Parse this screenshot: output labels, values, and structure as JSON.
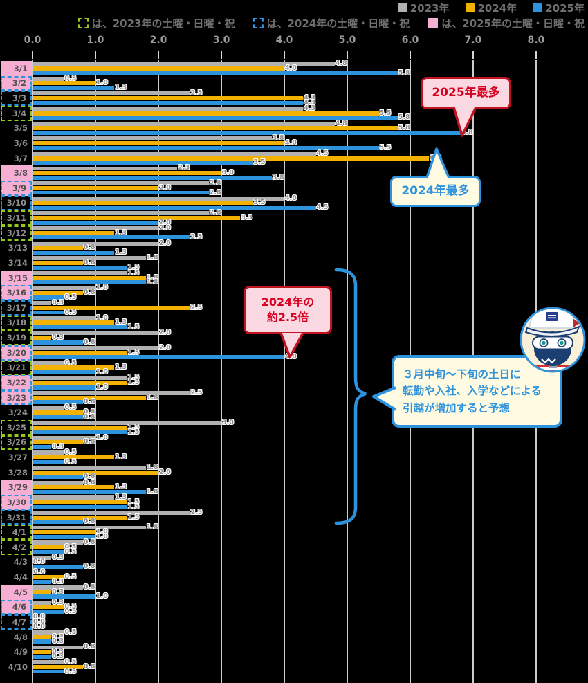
{
  "chart_data": {
    "type": "bar",
    "orientation": "horizontal",
    "x_axis": {
      "min": 0,
      "max": 8,
      "ticks": [
        "0.0",
        "1.0",
        "2.0",
        "3.0",
        "4.0",
        "5.0",
        "6.0",
        "7.0",
        "8.0"
      ],
      "grid": true
    },
    "series": [
      {
        "name": "2023年",
        "color": "#b1b1b1"
      },
      {
        "name": "2024年",
        "color": "#f3b200"
      },
      {
        "name": "2025年",
        "color": "#2e93dd"
      }
    ],
    "rows": [
      {
        "date": "3/1",
        "values": [
          4.8,
          4.0,
          5.8
        ],
        "pink": true,
        "border": null
      },
      {
        "date": "3/2",
        "values": [
          0.5,
          1.0,
          1.3
        ],
        "pink": true,
        "border": "blue"
      },
      {
        "date": "3/3",
        "values": [
          2.5,
          4.3,
          4.3
        ],
        "pink": false,
        "border": "blue"
      },
      {
        "date": "3/4",
        "values": [
          4.3,
          5.5,
          5.8
        ],
        "pink": false,
        "border": "green"
      },
      {
        "date": "3/5",
        "values": [
          4.8,
          5.8,
          6.8
        ],
        "pink": false,
        "border": null
      },
      {
        "date": "3/6",
        "values": [
          3.8,
          4.0,
          5.5
        ],
        "pink": false,
        "border": null
      },
      {
        "date": "3/7",
        "values": [
          4.5,
          6.3,
          3.5
        ],
        "pink": false,
        "border": null
      },
      {
        "date": "3/8",
        "values": [
          2.3,
          3.0,
          3.8
        ],
        "pink": true,
        "border": null
      },
      {
        "date": "3/9",
        "values": [
          2.8,
          2.0,
          2.8
        ],
        "pink": true,
        "border": "blue"
      },
      {
        "date": "3/10",
        "values": [
          4.0,
          3.5,
          4.5
        ],
        "pink": false,
        "border": "blue"
      },
      {
        "date": "3/11",
        "values": [
          2.8,
          3.3,
          2.0
        ],
        "pink": false,
        "border": "green"
      },
      {
        "date": "3/12",
        "values": [
          2.0,
          1.3,
          2.5
        ],
        "pink": false,
        "border": "green"
      },
      {
        "date": "3/13",
        "values": [
          2.0,
          0.8,
          1.3
        ],
        "pink": false,
        "border": null
      },
      {
        "date": "3/14",
        "values": [
          1.8,
          0.8,
          1.5
        ],
        "pink": false,
        "border": null
      },
      {
        "date": "3/15",
        "values": [
          1.5,
          1.8,
          1.8
        ],
        "pink": true,
        "border": null
      },
      {
        "date": "3/16",
        "values": [
          1.0,
          0.8,
          0.5
        ],
        "pink": true,
        "border": "blue"
      },
      {
        "date": "3/17",
        "values": [
          0.3,
          2.5,
          0.5
        ],
        "pink": false,
        "border": "blue"
      },
      {
        "date": "3/18",
        "values": [
          1.0,
          1.3,
          1.5
        ],
        "pink": false,
        "border": "green"
      },
      {
        "date": "3/19",
        "values": [
          2.0,
          0.3,
          0.8
        ],
        "pink": false,
        "border": "green"
      },
      {
        "date": "3/20",
        "values": [
          2.0,
          1.5,
          4.0
        ],
        "pink": true,
        "border": "blue"
      },
      {
        "date": "3/21",
        "values": [
          0.5,
          1.3,
          1.0
        ],
        "pink": false,
        "border": "green"
      },
      {
        "date": "3/22",
        "values": [
          1.5,
          1.5,
          1.0
        ],
        "pink": true,
        "border": "blue"
      },
      {
        "date": "3/23",
        "values": [
          2.5,
          1.8,
          0.8
        ],
        "pink": true,
        "border": "blue"
      },
      {
        "date": "3/24",
        "values": [
          0.5,
          0.8,
          0.8
        ],
        "pink": false,
        "border": null
      },
      {
        "date": "3/25",
        "values": [
          3.0,
          1.5,
          1.5
        ],
        "pink": false,
        "border": "green"
      },
      {
        "date": "3/26",
        "values": [
          1.0,
          0.8,
          0.3
        ],
        "pink": false,
        "border": "green"
      },
      {
        "date": "3/27",
        "values": [
          0.5,
          1.3,
          0.5
        ],
        "pink": false,
        "border": null
      },
      {
        "date": "3/28",
        "values": [
          1.8,
          2.0,
          0.8
        ],
        "pink": false,
        "border": null
      },
      {
        "date": "3/29",
        "values": [
          0.8,
          1.3,
          1.8
        ],
        "pink": true,
        "border": null
      },
      {
        "date": "3/30",
        "values": [
          1.3,
          1.5,
          1.5
        ],
        "pink": true,
        "border": "blue"
      },
      {
        "date": "3/31",
        "values": [
          2.5,
          1.5,
          0.8
        ],
        "pink": false,
        "border": "blue"
      },
      {
        "date": "4/1",
        "values": [
          1.8,
          1.0,
          1.0
        ],
        "pink": false,
        "border": "green"
      },
      {
        "date": "4/2",
        "values": [
          0.8,
          0.5,
          0.5
        ],
        "pink": false,
        "border": "green"
      },
      {
        "date": "4/3",
        "values": [
          0.3,
          0.0,
          0.8
        ],
        "pink": false,
        "border": null
      },
      {
        "date": "4/4",
        "values": [
          0.0,
          0.5,
          0.3
        ],
        "pink": false,
        "border": null
      },
      {
        "date": "4/5",
        "values": [
          0.8,
          0.3,
          1.0
        ],
        "pink": true,
        "border": null
      },
      {
        "date": "4/6",
        "values": [
          0.3,
          0.5,
          0.5
        ],
        "pink": true,
        "border": "blue"
      },
      {
        "date": "4/7",
        "values": [
          0.0,
          0.0,
          0.0
        ],
        "pink": false,
        "border": "blue"
      },
      {
        "date": "4/8",
        "values": [
          0.5,
          0.3,
          0.3
        ],
        "pink": false,
        "border": null
      },
      {
        "date": "4/9",
        "values": [
          0.8,
          0.3,
          0.3
        ],
        "pink": false,
        "border": null
      },
      {
        "date": "4/10",
        "values": [
          0.5,
          0.8,
          0.5
        ],
        "pink": false,
        "border": null
      }
    ]
  },
  "weekend_legend": {
    "items": [
      {
        "style": "green-dashed",
        "label": "は、2023年の土曜・日曜・祝"
      },
      {
        "style": "blue-dashed",
        "label": "は、2024年の土曜・日曜・祝"
      },
      {
        "style": "pink-solid",
        "label": "は、2025年の土曜・日曜・祝"
      }
    ]
  },
  "annotations": {
    "max2025": "2025年最多",
    "max2024": "2024年最多",
    "ratio_line1": "2024年の",
    "ratio_line2": "約2.5倍",
    "speech_line1": "３月中旬〜下旬の土日に",
    "speech_line2": "転勤や入社、入学などによる",
    "speech_line3": "引越が増加すると予想"
  },
  "colors": {
    "bar_2023": "#b1b1b1",
    "bar_2024": "#f3b200",
    "bar_2025": "#2e93dd",
    "pink_highlight": "#f7aed3",
    "green_dashed": "#97c81e",
    "blue_dashed": "#2e93dd",
    "red_bubble_border": "#c1121f",
    "red_bubble_fill": "#fbd9e3",
    "blue_bubble_fill": "#fffbe3",
    "background": "#000000"
  }
}
